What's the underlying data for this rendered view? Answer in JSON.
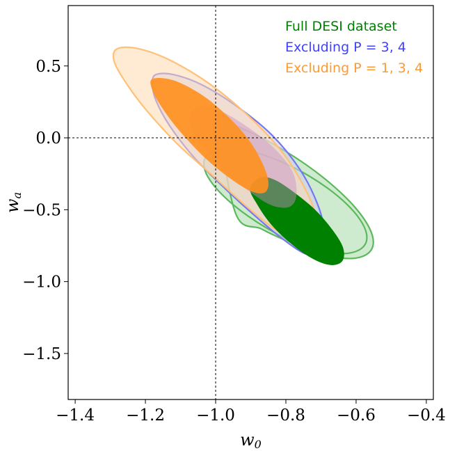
{
  "chart_data": {
    "type": "contour",
    "xlabel": "w0",
    "ylabel": "wa",
    "xlim": [
      -1.42,
      -0.38
    ],
    "ylim": [
      -1.82,
      0.92
    ],
    "x_ticks": [
      -1.4,
      -1.2,
      -1.0,
      -0.8,
      -0.6,
      -0.4
    ],
    "x_tick_labels": [
      "−1.4",
      "−1.2",
      "−1.0",
      "−0.8",
      "−0.6",
      "−0.4"
    ],
    "y_ticks": [
      0.5,
      0.0,
      -0.5,
      -1.0,
      -1.5
    ],
    "y_tick_labels": [
      "0.5",
      "0.0",
      "−0.5",
      "−1.0",
      "−1.5"
    ],
    "reference_lines": {
      "x": -1.0,
      "y": 0.0,
      "style": "dashed"
    },
    "legend": {
      "placement": "top-right",
      "entries": [
        {
          "name": "Full DESI dataset",
          "color": "#008000"
        },
        {
          "name": "Excluding P = 3, 4",
          "color": "#4040ff"
        },
        {
          "name": "Excluding P = 1, 3, 4",
          "color": "#ff9a33"
        }
      ]
    },
    "series": [
      {
        "name": "Full DESI dataset",
        "color": "#008000",
        "contours": [
          {
            "level": "outer",
            "fill": "#9fd79f",
            "fill_opacity": 0.5,
            "stroke": "#5cb85c",
            "points": [
              [
                -0.9896,
                0.1234
              ],
              [
                -0.9441,
                0.0846
              ],
              [
                -0.8837,
                0.0192
              ],
              [
                -0.8144,
                -0.0739
              ],
              [
                -0.7425,
                -0.1869
              ],
              [
                -0.6752,
                -0.3129
              ],
              [
                -0.6181,
                -0.443
              ],
              [
                -0.5762,
                -0.5685
              ],
              [
                -0.5535,
                -0.6804
              ],
              [
                -0.5542,
                -0.7674
              ],
              [
                -0.579,
                -0.822
              ],
              [
                -0.6249,
                -0.8392
              ],
              [
                -0.6869,
                -0.8114
              ],
              [
                -0.7595,
                -0.7467
              ],
              [
                -0.8353,
                -0.6548
              ],
              [
                -0.907,
                -0.5452
              ],
              [
                -0.9673,
                -0.4282
              ],
              [
                -1.0105,
                -0.3144
              ],
              [
                -1.0319,
                -0.2138
              ],
              [
                -1.0289,
                -0.135
              ],
              [
                -1.0015,
                -0.0866
              ],
              [
                -0.9532,
                -0.0735
              ],
              [
                -0.8904,
                -0.0993
              ],
              [
                -0.8201,
                -0.1587
              ],
              [
                -0.7486,
                -0.2447
              ],
              [
                -0.6825,
                -0.3479
              ],
              [
                -0.6276,
                -0.4588
              ],
              [
                -0.5891,
                -0.5677
              ],
              [
                -0.5705,
                -0.6651
              ],
              [
                -0.5745,
                -0.7422
              ],
              [
                -0.6017,
                -0.7913
              ],
              [
                -0.6501,
                -0.8059
              ],
              [
                -0.7153,
                -0.782
              ],
              [
                -0.791,
                -0.7219
              ],
              [
                -0.8696,
                -0.6335
              ],
              [
                -0.9431,
                -0.5255
              ]
            ]
          },
          {
            "level": "inner",
            "fill": "#008000",
            "fill_opacity": 1,
            "stroke": "#008000",
            "points": [
              [
                -0.87,
                -0.28
              ],
              [
                -0.83,
                -0.3
              ],
              [
                -0.78,
                -0.38
              ],
              [
                -0.72,
                -0.5
              ],
              [
                -0.67,
                -0.64
              ],
              [
                -0.64,
                -0.76
              ],
              [
                -0.64,
                -0.85
              ],
              [
                -0.67,
                -0.88
              ],
              [
                -0.72,
                -0.84
              ],
              [
                -0.78,
                -0.74
              ],
              [
                -0.84,
                -0.6
              ],
              [
                -0.88,
                -0.46
              ],
              [
                -0.9,
                -0.35
              ]
            ]
          }
        ]
      },
      {
        "name": "Excluding P = 3, 4",
        "color": "#4040ff",
        "contours": [
          {
            "level": "outer",
            "fill": "#ccccf5",
            "fill_opacity": 0.55,
            "stroke": "#7777ee",
            "points": [
              [
                -1.17,
                0.44
              ],
              [
                -1.12,
                0.44
              ],
              [
                -1.04,
                0.37
              ],
              [
                -0.94,
                0.22
              ],
              [
                -0.84,
                0.02
              ],
              [
                -0.76,
                -0.22
              ],
              [
                -0.71,
                -0.46
              ],
              [
                -0.69,
                -0.66
              ],
              [
                -0.7,
                -0.79
              ],
              [
                -0.74,
                -0.81
              ],
              [
                -0.8,
                -0.72
              ],
              [
                -0.88,
                -0.56
              ],
              [
                -0.97,
                -0.36
              ],
              [
                -1.06,
                -0.14
              ],
              [
                -1.13,
                0.08
              ],
              [
                -1.17,
                0.26
              ],
              [
                -1.18,
                0.38
              ]
            ]
          },
          {
            "level": "inner",
            "fill": "#c98ec9",
            "fill_opacity": 0.45,
            "stroke": "none",
            "points": [
              [
                -1.04,
                0.22
              ],
              [
                -0.98,
                0.18
              ],
              [
                -0.9,
                0.06
              ],
              [
                -0.83,
                -0.08
              ],
              [
                -0.78,
                -0.24
              ],
              [
                -0.77,
                -0.4
              ],
              [
                -0.79,
                -0.48
              ],
              [
                -0.84,
                -0.47
              ],
              [
                -0.9,
                -0.38
              ],
              [
                -0.97,
                -0.24
              ],
              [
                -1.03,
                -0.08
              ],
              [
                -1.07,
                0.06
              ],
              [
                -1.07,
                0.17
              ]
            ]
          }
        ]
      },
      {
        "name": "Excluding P = 1, 3, 4",
        "color": "#ff9a33",
        "contours": [
          {
            "level": "outer",
            "fill": "#ffd9b0",
            "fill_opacity": 0.55,
            "stroke": "#ffc078",
            "points": [
              [
                -1.28,
                0.62
              ],
              [
                -1.22,
                0.62
              ],
              [
                -1.13,
                0.54
              ],
              [
                -1.02,
                0.38
              ],
              [
                -0.91,
                0.16
              ],
              [
                -0.81,
                -0.1
              ],
              [
                -0.74,
                -0.38
              ],
              [
                -0.71,
                -0.6
              ],
              [
                -0.72,
                -0.72
              ],
              [
                -0.77,
                -0.72
              ],
              [
                -0.84,
                -0.62
              ],
              [
                -0.92,
                -0.46
              ],
              [
                -1.01,
                -0.26
              ],
              [
                -1.11,
                -0.04
              ],
              [
                -1.2,
                0.2
              ],
              [
                -1.26,
                0.4
              ],
              [
                -1.29,
                0.54
              ]
            ]
          },
          {
            "level": "inner",
            "fill": "#ff9020",
            "fill_opacity": 0.92,
            "stroke": "none",
            "points": [
              [
                -1.18,
                0.41
              ],
              [
                -1.12,
                0.4
              ],
              [
                -1.04,
                0.3
              ],
              [
                -0.97,
                0.16
              ],
              [
                -0.91,
                0.0
              ],
              [
                -0.87,
                -0.16
              ],
              [
                -0.85,
                -0.3
              ],
              [
                -0.86,
                -0.38
              ],
              [
                -0.9,
                -0.37
              ],
              [
                -0.96,
                -0.28
              ],
              [
                -1.03,
                -0.14
              ],
              [
                -1.1,
                0.04
              ],
              [
                -1.15,
                0.2
              ],
              [
                -1.18,
                0.33
              ]
            ]
          }
        ]
      }
    ]
  }
}
